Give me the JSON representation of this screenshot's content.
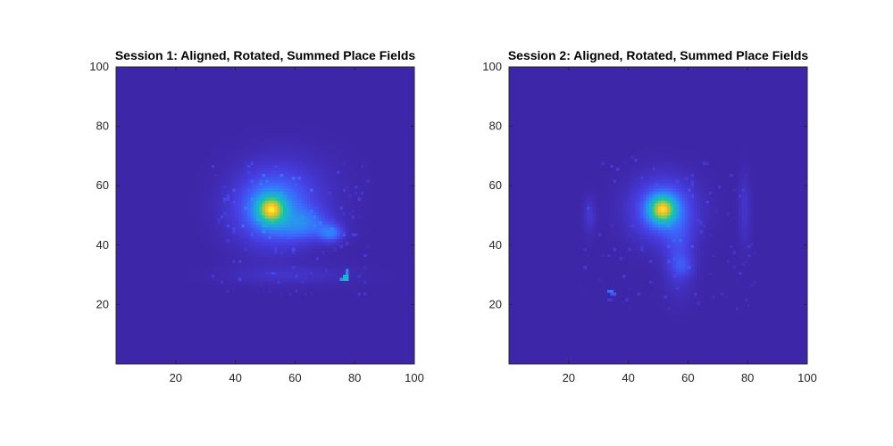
{
  "figure": {
    "background": "#ffffff"
  },
  "chart_data": [
    {
      "type": "heatmap",
      "title": "Session 1: Aligned, Rotated, Summed Place Fields",
      "xlim": [
        0,
        100
      ],
      "ylim": [
        0,
        100
      ],
      "x_ticks": [
        20,
        40,
        60,
        80,
        100
      ],
      "y_ticks": [
        20,
        40,
        60,
        80,
        100
      ],
      "y_direction": "normal",
      "grid": false,
      "colormap": "parula",
      "background_color": "#3e26a8",
      "blobs": [
        {
          "x": 52,
          "y": 52,
          "sx": 3.0,
          "sy": 3.0,
          "amp": 0.72
        },
        {
          "x": 52,
          "y": 52,
          "sx": 8.5,
          "sy": 8.0,
          "amp": 0.22
        },
        {
          "x": 63,
          "y": 47,
          "sx": 6.0,
          "sy": 3.5,
          "amp": 0.17
        },
        {
          "x": 72,
          "y": 44,
          "sx": 2.8,
          "sy": 2.0,
          "amp": 0.2
        },
        {
          "x": 58,
          "y": 58,
          "sx": 11.0,
          "sy": 9.0,
          "amp": 0.06
        },
        {
          "x": 58,
          "y": 30,
          "sx": 14.0,
          "sy": 2.2,
          "amp": 0.05
        }
      ],
      "hotspots": [
        {
          "x": 76.5,
          "y": 28,
          "w": 2,
          "h": 2,
          "value": 0.42
        },
        {
          "x": 75,
          "y": 28,
          "w": 3,
          "h": 1,
          "value": 0.3
        },
        {
          "x": 77,
          "y": 30,
          "w": 1,
          "h": 2,
          "value": 0.25
        }
      ],
      "speckle": {
        "x_range": [
          32,
          85
        ],
        "y_range": [
          23,
          68
        ],
        "density": 0.06,
        "max_value": 0.09,
        "seed": 11
      }
    },
    {
      "type": "heatmap",
      "title": "Session 2: Aligned, Rotated, Summed Place Fields",
      "xlim": [
        0,
        100
      ],
      "ylim": [
        0,
        100
      ],
      "x_ticks": [
        20,
        40,
        60,
        80,
        100
      ],
      "y_ticks": [
        20,
        40,
        60,
        80,
        100
      ],
      "y_direction": "normal",
      "grid": false,
      "colormap": "parula",
      "background_color": "#3e26a8",
      "blobs": [
        {
          "x": 51.5,
          "y": 52,
          "sx": 2.8,
          "sy": 2.8,
          "amp": 0.74
        },
        {
          "x": 51.5,
          "y": 52,
          "sx": 7.0,
          "sy": 7.0,
          "amp": 0.22
        },
        {
          "x": 57,
          "y": 38,
          "sx": 3.5,
          "sy": 9.0,
          "amp": 0.1
        },
        {
          "x": 58,
          "y": 33,
          "sx": 2.5,
          "sy": 2.5,
          "amp": 0.08
        },
        {
          "x": 27,
          "y": 50,
          "sx": 1.3,
          "sy": 4.0,
          "amp": 0.07
        },
        {
          "x": 79,
          "y": 52,
          "sx": 1.3,
          "sy": 8.0,
          "amp": 0.06
        }
      ],
      "hotspots": [
        {
          "x": 33,
          "y": 24,
          "w": 2,
          "h": 1,
          "value": 0.2
        },
        {
          "x": 34,
          "y": 23,
          "w": 2,
          "h": 1,
          "value": 0.15
        }
      ],
      "speckle": {
        "x_range": [
          25,
          83
        ],
        "y_range": [
          18,
          70
        ],
        "density": 0.04,
        "max_value": 0.08,
        "seed": 29
      }
    }
  ]
}
